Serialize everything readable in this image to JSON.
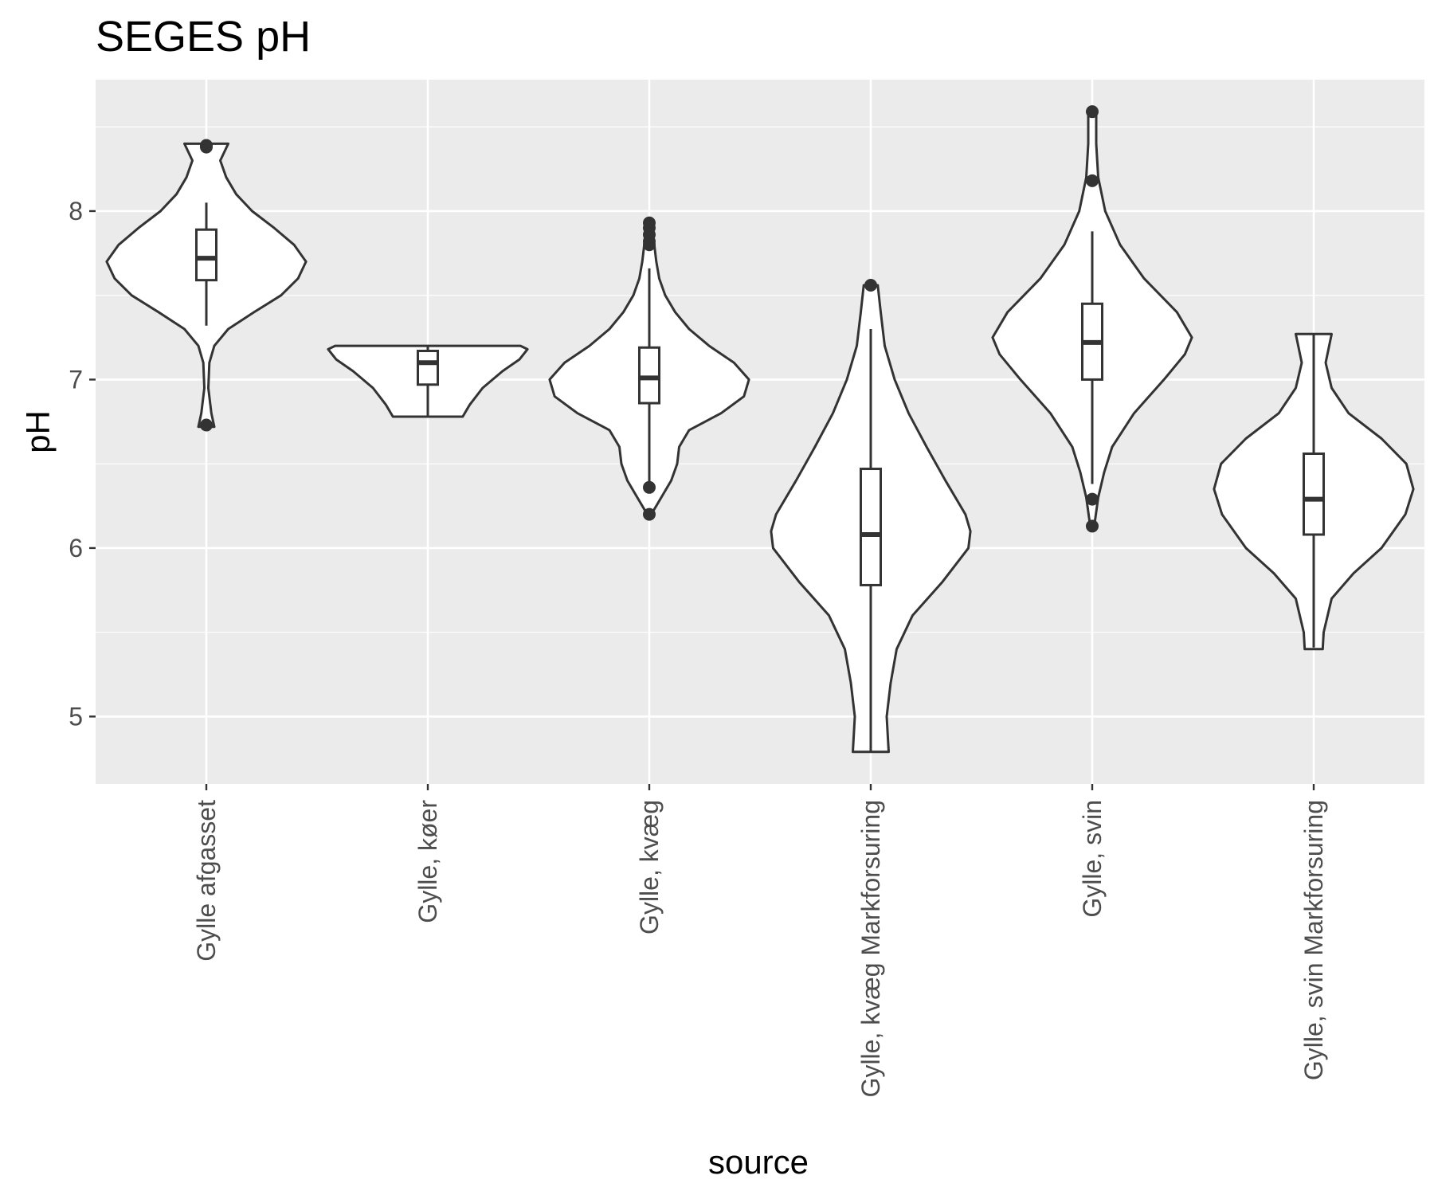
{
  "chart_data": {
    "type": "violin",
    "title": "SEGES pH",
    "xlabel": "source",
    "ylabel": "pH",
    "ylim": [
      4.6,
      8.78
    ],
    "yticks": [
      5,
      6,
      7,
      8
    ],
    "ytick_labels": [
      "5",
      "6",
      "7",
      "8"
    ],
    "grid": true,
    "background": "#ebebeb",
    "categories": [
      "Gylle afgasset",
      "Gylle, køer",
      "Gylle, kvæg",
      "Gylle, kvæg Markforsuring",
      "Gylle, svin",
      "Gylle, svin Markforsuring"
    ],
    "groups": [
      {
        "name": "Gylle afgasset",
        "boxplot": {
          "whisker_low": 7.32,
          "q1": 7.59,
          "median": 7.72,
          "q3": 7.89,
          "whisker_high": 8.05
        },
        "outliers": [
          8.39,
          8.38,
          6.73
        ],
        "range": [
          6.72,
          8.4
        ],
        "violin_half_width_ratio": [
          [
            6.72,
            0.08
          ],
          [
            6.8,
            0.05
          ],
          [
            6.95,
            0.02
          ],
          [
            7.1,
            0.03
          ],
          [
            7.2,
            0.08
          ],
          [
            7.3,
            0.22
          ],
          [
            7.4,
            0.48
          ],
          [
            7.5,
            0.75
          ],
          [
            7.6,
            0.92
          ],
          [
            7.7,
            1.0
          ],
          [
            7.8,
            0.88
          ],
          [
            7.9,
            0.68
          ],
          [
            8.0,
            0.46
          ],
          [
            8.1,
            0.3
          ],
          [
            8.2,
            0.2
          ],
          [
            8.3,
            0.14
          ],
          [
            8.4,
            0.22
          ]
        ]
      },
      {
        "name": "Gylle, køer",
        "boxplot": {
          "whisker_low": 6.78,
          "q1": 6.97,
          "median": 7.1,
          "q3": 7.17,
          "whisker_high": 7.2
        },
        "outliers": [],
        "range": [
          6.78,
          7.2
        ],
        "violin_half_width_ratio": [
          [
            6.78,
            0.35
          ],
          [
            6.85,
            0.42
          ],
          [
            6.95,
            0.55
          ],
          [
            7.05,
            0.75
          ],
          [
            7.12,
            0.92
          ],
          [
            7.18,
            1.0
          ],
          [
            7.2,
            0.93
          ]
        ]
      },
      {
        "name": "Gylle, kvæg",
        "boxplot": {
          "whisker_low": 6.35,
          "q1": 6.86,
          "median": 7.01,
          "q3": 7.19,
          "whisker_high": 7.66
        },
        "outliers": [
          7.93,
          7.9,
          7.86,
          7.82,
          7.8,
          6.36,
          6.2
        ],
        "range": [
          6.2,
          7.93
        ],
        "violin_half_width_ratio": [
          [
            6.2,
            0.02
          ],
          [
            6.3,
            0.12
          ],
          [
            6.4,
            0.22
          ],
          [
            6.5,
            0.28
          ],
          [
            6.6,
            0.3
          ],
          [
            6.7,
            0.4
          ],
          [
            6.8,
            0.72
          ],
          [
            6.9,
            0.95
          ],
          [
            7.0,
            1.0
          ],
          [
            7.1,
            0.85
          ],
          [
            7.2,
            0.6
          ],
          [
            7.3,
            0.4
          ],
          [
            7.4,
            0.26
          ],
          [
            7.5,
            0.16
          ],
          [
            7.6,
            0.1
          ],
          [
            7.7,
            0.07
          ],
          [
            7.8,
            0.05
          ],
          [
            7.93,
            0.03
          ]
        ]
      },
      {
        "name": "Gylle, kvæg Markforsuring",
        "boxplot": {
          "whisker_low": 4.79,
          "q1": 5.78,
          "median": 6.08,
          "q3": 6.47,
          "whisker_high": 7.3
        },
        "outliers": [
          7.56
        ],
        "range": [
          4.79,
          7.56
        ],
        "violin_half_width_ratio": [
          [
            4.79,
            0.18
          ],
          [
            5.0,
            0.16
          ],
          [
            5.2,
            0.2
          ],
          [
            5.4,
            0.26
          ],
          [
            5.6,
            0.42
          ],
          [
            5.8,
            0.72
          ],
          [
            6.0,
            0.98
          ],
          [
            6.1,
            1.0
          ],
          [
            6.2,
            0.95
          ],
          [
            6.4,
            0.75
          ],
          [
            6.6,
            0.56
          ],
          [
            6.8,
            0.38
          ],
          [
            7.0,
            0.24
          ],
          [
            7.2,
            0.14
          ],
          [
            7.4,
            0.1
          ],
          [
            7.56,
            0.07
          ]
        ]
      },
      {
        "name": "Gylle, svin",
        "boxplot": {
          "whisker_low": 6.38,
          "q1": 7.0,
          "median": 7.22,
          "q3": 7.45,
          "whisker_high": 7.88
        },
        "outliers": [
          8.59,
          8.18,
          6.29,
          6.13
        ],
        "range": [
          6.13,
          8.59
        ],
        "violin_half_width_ratio": [
          [
            6.13,
            0.02
          ],
          [
            6.3,
            0.06
          ],
          [
            6.45,
            0.12
          ],
          [
            6.6,
            0.2
          ],
          [
            6.8,
            0.42
          ],
          [
            7.0,
            0.72
          ],
          [
            7.15,
            0.93
          ],
          [
            7.25,
            1.0
          ],
          [
            7.4,
            0.85
          ],
          [
            7.6,
            0.52
          ],
          [
            7.8,
            0.28
          ],
          [
            8.0,
            0.13
          ],
          [
            8.2,
            0.06
          ],
          [
            8.4,
            0.04
          ],
          [
            8.59,
            0.04
          ]
        ]
      },
      {
        "name": "Gylle, svin Markforsuring",
        "boxplot": {
          "whisker_low": 5.41,
          "q1": 6.08,
          "median": 6.29,
          "q3": 6.56,
          "whisker_high": 7.27
        },
        "outliers": [],
        "range": [
          5.4,
          7.27
        ],
        "violin_half_width_ratio": [
          [
            5.4,
            0.09
          ],
          [
            5.5,
            0.1
          ],
          [
            5.7,
            0.18
          ],
          [
            5.85,
            0.4
          ],
          [
            6.0,
            0.68
          ],
          [
            6.2,
            0.92
          ],
          [
            6.35,
            1.0
          ],
          [
            6.5,
            0.93
          ],
          [
            6.65,
            0.68
          ],
          [
            6.8,
            0.35
          ],
          [
            6.95,
            0.18
          ],
          [
            7.1,
            0.12
          ],
          [
            7.27,
            0.18
          ]
        ]
      }
    ]
  }
}
